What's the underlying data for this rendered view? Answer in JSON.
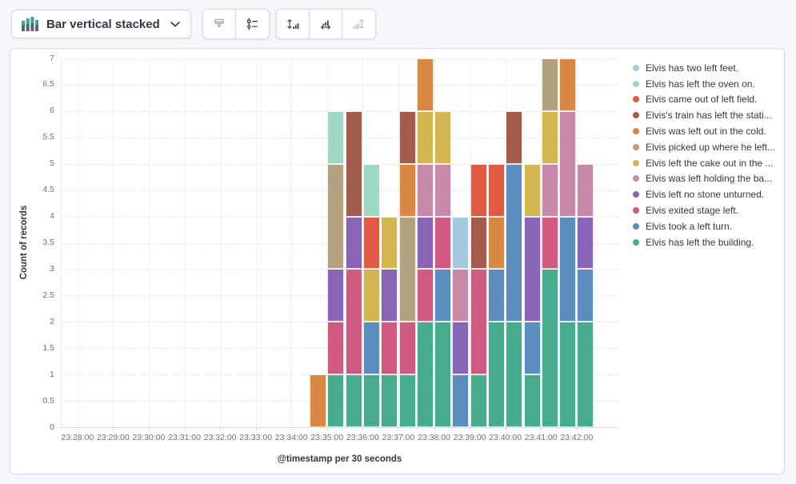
{
  "toolbar": {
    "chart_type_label": "Bar vertical stacked",
    "chart_type_icon": "bar-vertical-stacked-icon",
    "style_buttons": [
      {
        "icon": "ink-brush-icon",
        "disabled": true
      },
      {
        "icon": "visual-options-icon",
        "disabled": false
      }
    ],
    "axis_buttons": [
      {
        "icon": "left-axis-icon",
        "disabled": false
      },
      {
        "icon": "bottom-axis-icon",
        "disabled": false
      },
      {
        "icon": "right-axis-icon",
        "disabled": true
      }
    ]
  },
  "chart_data": {
    "type": "bar",
    "stacked": true,
    "orientation": "vertical",
    "title": "",
    "xlabel": "@timestamp per 30 seconds",
    "ylabel": "Count of records",
    "ylim": [
      0,
      7
    ],
    "y_tick_step": 0.5,
    "grid": true,
    "legend_position": "right",
    "x_axis_tick_labels": [
      "23:28:00",
      "23:29:00",
      "23:30:00",
      "23:31:00",
      "23:32:00",
      "23:33:00",
      "23:34:00",
      "23:35:00",
      "23:36:00",
      "23:37:00",
      "23:38:00",
      "23:39:00",
      "23:40:00",
      "23:41:00",
      "23:42:00"
    ],
    "categories": [
      "23:34:30",
      "23:35:00",
      "23:35:30",
      "23:36:00",
      "23:36:30",
      "23:37:00",
      "23:37:30",
      "23:38:00",
      "23:38:30",
      "23:39:00",
      "23:39:30",
      "23:40:00",
      "23:40:30",
      "23:41:00",
      "23:41:30",
      "23:42:00"
    ],
    "series": [
      {
        "name": "Elvis has two left feet.",
        "color": "#A6C7E0",
        "values": [
          0,
          0,
          0,
          0,
          0,
          0,
          0,
          0,
          1,
          0,
          0,
          0,
          0,
          0,
          0,
          0
        ]
      },
      {
        "name": "Elvis has left the oven on.",
        "color": "#9FD8C3",
        "values": [
          0,
          1,
          0,
          1,
          0,
          0,
          0,
          0,
          0,
          0,
          0,
          0,
          0,
          0,
          0,
          0
        ]
      },
      {
        "name": "Elvis came out of left field.",
        "color": "#E25A41",
        "values": [
          0,
          0,
          0,
          1,
          0,
          0,
          0,
          0,
          0,
          1,
          1,
          0,
          0,
          0,
          0,
          0
        ]
      },
      {
        "name": "Elvis's train has left the stati...",
        "color": "#A55B4C",
        "values": [
          0,
          0,
          2,
          0,
          0,
          1,
          0,
          0,
          0,
          1,
          0,
          1,
          0,
          0,
          0,
          0
        ]
      },
      {
        "name": "Elvis was left out in the cold.",
        "color": "#D88842",
        "values": [
          1,
          0,
          0,
          0,
          0,
          1,
          1,
          0,
          0,
          0,
          1,
          0,
          0,
          0,
          1,
          0
        ]
      },
      {
        "name": "Elvis picked up where he left...",
        "color": "#B4A17F",
        "values": [
          0,
          2,
          0,
          0,
          0,
          2,
          0,
          0,
          0,
          0,
          0,
          0,
          0,
          1,
          0,
          0
        ]
      },
      {
        "name": "Elvis left the cake out in the ...",
        "color": "#D2B64F",
        "values": [
          0,
          0,
          0,
          1,
          1,
          0,
          1,
          1,
          0,
          0,
          0,
          0,
          1,
          1,
          0,
          0
        ]
      },
      {
        "name": "Elvis was left holding the ba...",
        "color": "#C888A8",
        "values": [
          0,
          0,
          0,
          0,
          0,
          0,
          1,
          1,
          1,
          0,
          0,
          0,
          0,
          1,
          2,
          1
        ]
      },
      {
        "name": "Elvis left no stone unturned.",
        "color": "#8865B6",
        "values": [
          0,
          1,
          1,
          0,
          1,
          0,
          1,
          0,
          1,
          0,
          0,
          0,
          2,
          0,
          0,
          1
        ]
      },
      {
        "name": "Elvis exited stage left.",
        "color": "#D05A80",
        "values": [
          0,
          1,
          2,
          0,
          1,
          1,
          1,
          1,
          0,
          2,
          0,
          0,
          0,
          1,
          0,
          0
        ]
      },
      {
        "name": "Elvis took a left turn.",
        "color": "#5B8DBE",
        "values": [
          0,
          0,
          0,
          1,
          0,
          0,
          0,
          1,
          1,
          0,
          1,
          3,
          1,
          0,
          2,
          1
        ]
      },
      {
        "name": "Elvis has left the building.",
        "color": "#47AB8E",
        "values": [
          0,
          1,
          1,
          1,
          1,
          1,
          2,
          2,
          0,
          1,
          2,
          2,
          1,
          3,
          2,
          2
        ]
      }
    ]
  }
}
